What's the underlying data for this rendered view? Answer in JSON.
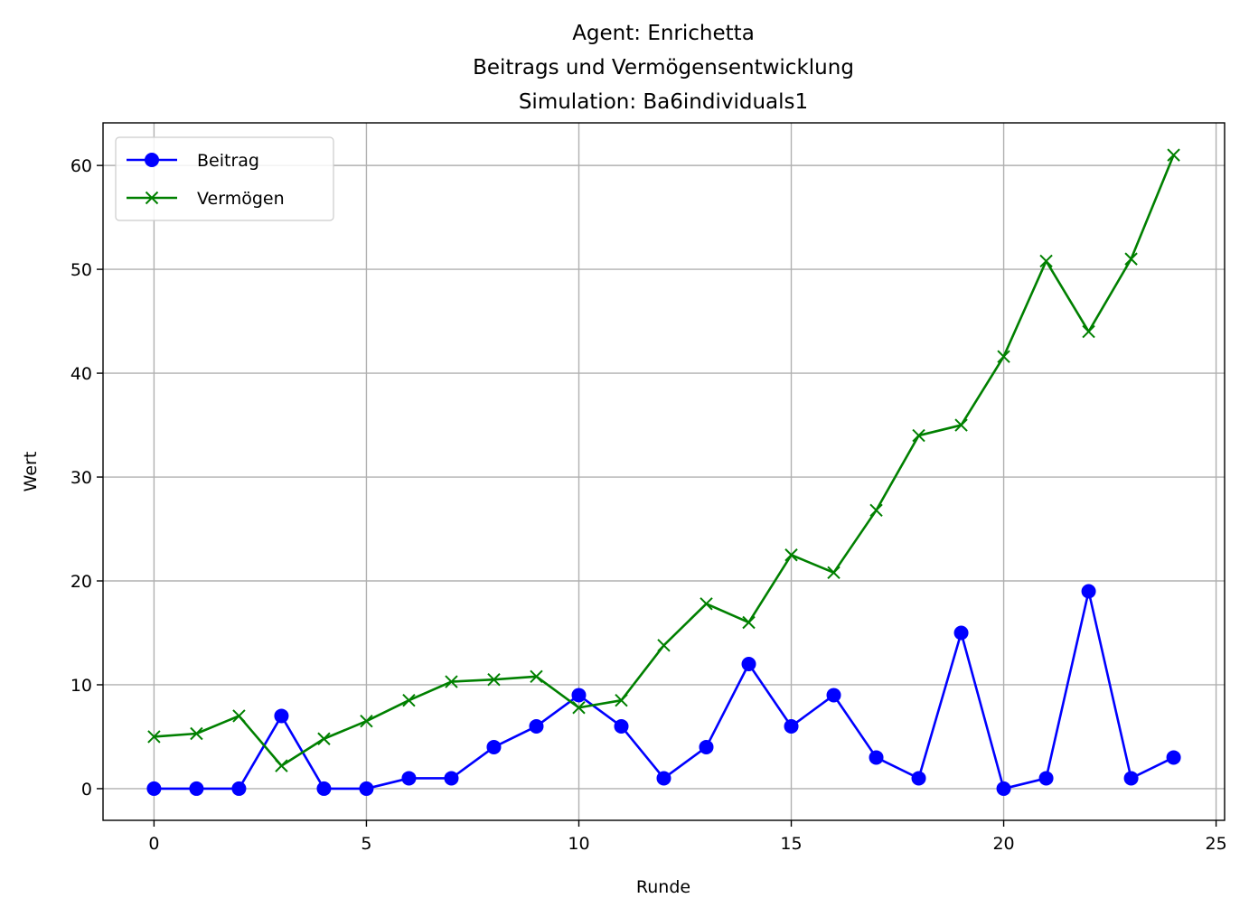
{
  "chart_data": {
    "type": "line",
    "title": [
      "Agent: Enrichetta",
      "Beitrags und Vermögensentwicklung",
      "Simulation: Ba6individuals1"
    ],
    "xlabel": "Runde",
    "ylabel": "Wert",
    "xlim": [
      -1.2,
      25.2
    ],
    "ylim": [
      -3.05,
      64.1
    ],
    "xticks": [
      0,
      5,
      10,
      15,
      20,
      25
    ],
    "yticks": [
      0,
      10,
      20,
      30,
      40,
      50,
      60
    ],
    "grid": true,
    "legend_position": "upper left",
    "x": [
      0,
      1,
      2,
      3,
      4,
      5,
      6,
      7,
      8,
      9,
      10,
      11,
      12,
      13,
      14,
      15,
      16,
      17,
      18,
      19,
      20,
      21,
      22,
      23,
      24
    ],
    "series": [
      {
        "name": "Beitrag",
        "color": "#0000ff",
        "marker": "circle",
        "values": [
          0,
          0,
          0,
          7,
          0,
          0,
          1,
          1,
          4,
          6,
          9,
          6,
          1,
          4,
          12,
          6,
          9,
          3,
          1,
          15,
          0,
          1,
          19,
          1,
          3
        ]
      },
      {
        "name": "Vermögen",
        "color": "#008000",
        "marker": "x",
        "values": [
          5,
          5.3,
          7,
          2.2,
          4.8,
          6.5,
          8.5,
          10.3,
          10.5,
          10.8,
          7.8,
          8.5,
          13.8,
          17.8,
          16,
          22.5,
          20.8,
          26.8,
          34,
          35,
          41.6,
          50.8,
          44,
          51,
          61
        ]
      }
    ]
  }
}
